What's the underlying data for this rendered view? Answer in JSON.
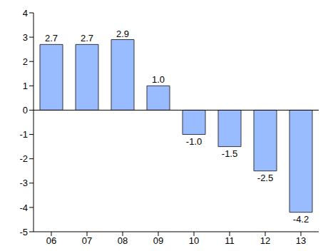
{
  "chart_data": {
    "type": "bar",
    "categories": [
      "06",
      "07",
      "08",
      "09",
      "10",
      "11",
      "12",
      "13"
    ],
    "values": [
      2.7,
      2.7,
      2.9,
      1.0,
      -1.0,
      -1.5,
      -2.5,
      -4.2
    ],
    "value_labels": [
      "2.7",
      "2.7",
      "2.9",
      "1.0",
      "-1.0",
      "-1.5",
      "-2.5",
      "-4.2"
    ],
    "color": "#99bbff",
    "ylim": [
      -5,
      4
    ],
    "yticks": [
      -5,
      -4,
      -3,
      -2,
      -1,
      0,
      1,
      2,
      3,
      4
    ],
    "data_labels": true,
    "grid": false
  }
}
